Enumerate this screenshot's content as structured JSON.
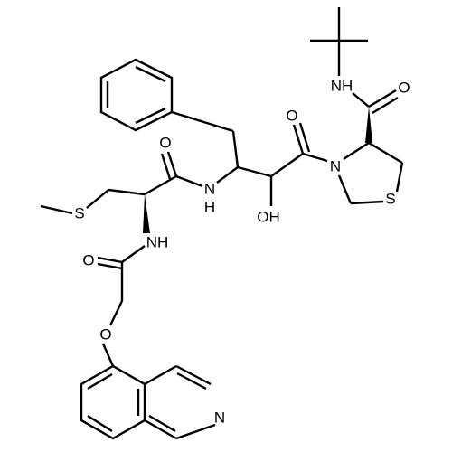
{
  "labels": [
    "NH",
    "O",
    "O",
    "N",
    "S",
    "OH",
    "N",
    "H",
    "O",
    "S",
    "NH",
    "O",
    "O",
    "N"
  ]
}
